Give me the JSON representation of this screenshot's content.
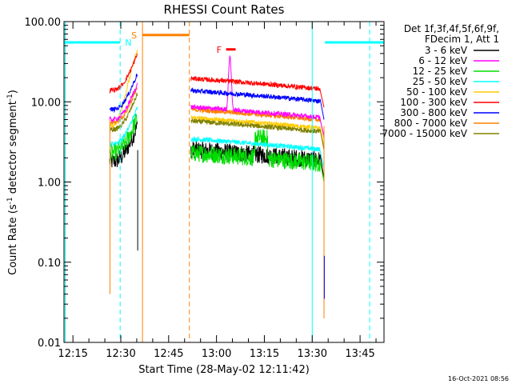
{
  "chart_data": {
    "type": "line",
    "title": "RHESSI Count Rates",
    "xlabel": "Start Time (28-May-02 12:11:42)",
    "ylabel_main": "Count Rate (s",
    "ylabel_sup": "-1",
    "ylabel_tail": " detector segment",
    "ylabel_sup2": "-1",
    "ylabel_close": ")",
    "y_scale": "log",
    "ylim": [
      0.01,
      100
    ],
    "y_ticks": [
      {
        "value": 100,
        "label": "100.00"
      },
      {
        "value": 10,
        "label": "10.00"
      },
      {
        "value": 1,
        "label": "1.00"
      },
      {
        "value": 0.1,
        "label": "0.10"
      },
      {
        "value": 0.01,
        "label": "0.01"
      }
    ],
    "xlim_minutes": [
      12.2,
      112.5
    ],
    "x_ticks": [
      {
        "value": 15,
        "label": "12:15"
      },
      {
        "value": 30,
        "label": "12:30"
      },
      {
        "value": 45,
        "label": "12:45"
      },
      {
        "value": 60,
        "label": "13:00"
      },
      {
        "value": 75,
        "label": "13:15"
      },
      {
        "value": 90,
        "label": "13:30"
      },
      {
        "value": 105,
        "label": "13:45"
      }
    ],
    "legend_header": [
      "Det 1f,3f,4f,5f,6f,9f,",
      "FDecim 1, Att 1"
    ],
    "legend_placement": "right",
    "series": [
      {
        "name": "3 - 6 keV",
        "color": "#000000",
        "level1": 1.8,
        "level2": 2.2
      },
      {
        "name": "6 - 12 keV",
        "color": "#ff00ff",
        "level1": 6.0,
        "level2": 7.5
      },
      {
        "name": "12 - 25 keV",
        "color": "#00dd00",
        "level1": 2.3,
        "level2": 2.0
      },
      {
        "name": "25 - 50 keV",
        "color": "#00ffff",
        "level1": 3.0,
        "level2": 3.0
      },
      {
        "name": "50 - 100 keV",
        "color": "#ffcc00",
        "level1": 5.0,
        "level2": 5.5
      },
      {
        "name": "100 - 300 keV",
        "color": "#ff0000",
        "level1": 14.0,
        "level2": 17.0
      },
      {
        "name": "300 - 800 keV",
        "color": "#0000ff",
        "level1": 8.0,
        "level2": 12.0
      },
      {
        "name": "800 - 7000 keV",
        "color": "#ff8000",
        "level1": 5.5,
        "level2": 7.0
      },
      {
        "name": "7000 - 15000 keV",
        "color": "#808000",
        "level1": 4.5,
        "level2": 5.0
      }
    ],
    "segments": {
      "seg1_start_min": 26.5,
      "seg1_end_min": 35.2,
      "seg2_start_min": 52.0,
      "seg2_end_min": 92.5
    },
    "flags": [
      {
        "label": "N",
        "color": "#00ffff",
        "spans": [
          [
            12.2,
            29.8
          ],
          [
            94.0,
            112.5
          ]
        ],
        "level": 55
      },
      {
        "label": "S",
        "color": "#ff8000",
        "spans": [
          [
            36.8,
            51.5
          ]
        ],
        "level": 68
      },
      {
        "label": "F",
        "color": "#ff0000",
        "spans": [
          [
            63.0,
            66.0
          ]
        ],
        "level": 45
      }
    ],
    "vlines": [
      {
        "x": 29.8,
        "color": "#00ffff",
        "dashed": true
      },
      {
        "x": 36.8,
        "color": "#ff8000",
        "dashed": false
      },
      {
        "x": 51.5,
        "color": "#ff8000",
        "dashed": true
      },
      {
        "x": 90.0,
        "color": "#00ffff",
        "dashed": false
      },
      {
        "x": 108.0,
        "color": "#00ffff",
        "dashed": true
      },
      {
        "x": 12.6,
        "color": "#00ffff",
        "dashed": false
      }
    ],
    "footer_date": "16-Oct-2021 08:56"
  }
}
